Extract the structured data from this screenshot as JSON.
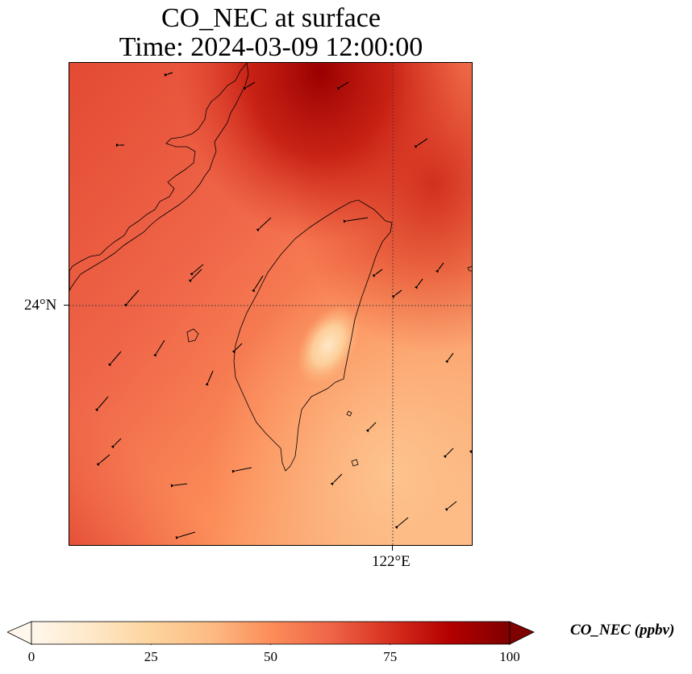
{
  "title": {
    "line1": "CO_NEC at surface",
    "line2": "Time: 2024-03-09 12:00:00"
  },
  "map": {
    "lat_tick_label": "24°N",
    "lon_tick_label": "122°E",
    "variable": "CO_NEC",
    "field_summary": "concentration field with higher values to the north-east and lower values over central Taiwan and the south-east",
    "wind_vectors": "shown as arrows across the domain",
    "colormap": "OrRd"
  },
  "colorbar": {
    "title": "CO_NEC (ppbv)",
    "ticks": [
      "0",
      "25",
      "50",
      "75",
      "100"
    ],
    "min": 0,
    "max": 100,
    "extend": "both",
    "colors": [
      "#fff7ec",
      "#fee8c8",
      "#fdd49e",
      "#fdbb84",
      "#fc8d59",
      "#ef6548",
      "#d7301f",
      "#b30000",
      "#7f0000"
    ]
  }
}
